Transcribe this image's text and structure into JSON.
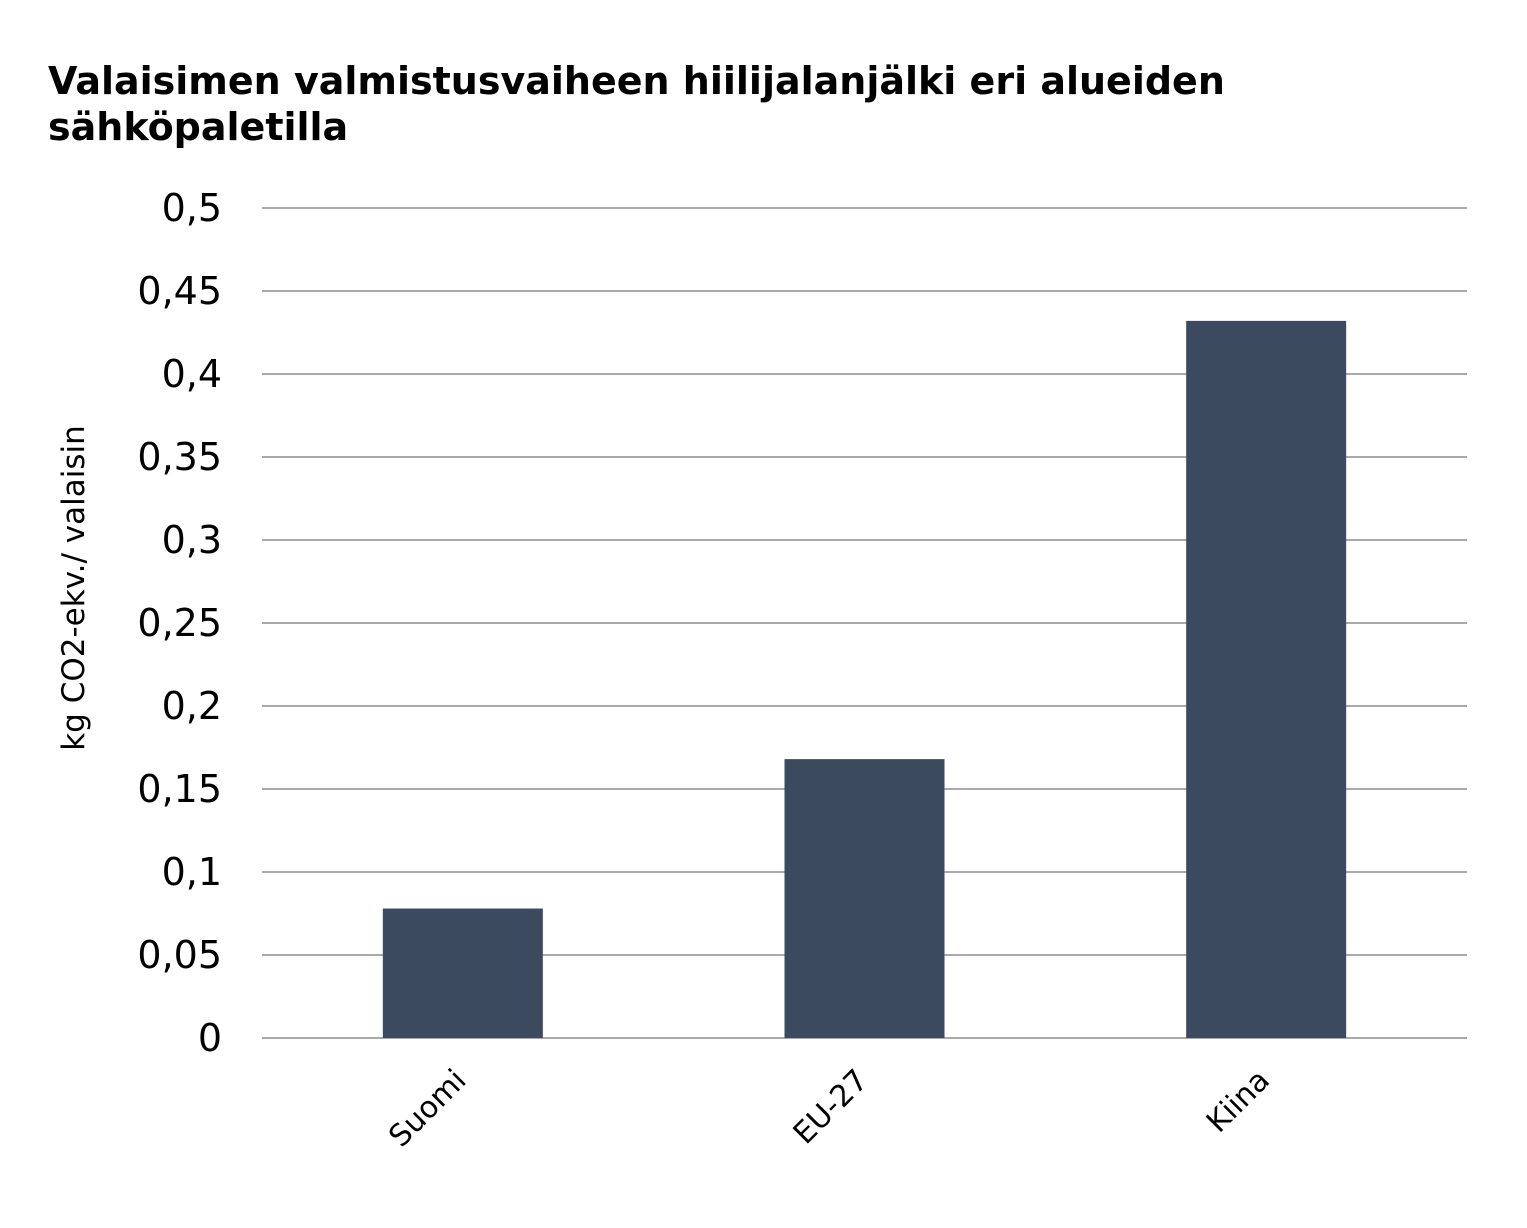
{
  "chart_data": {
    "type": "bar",
    "title": "Valaisimen valmistusvaiheen hiilijalanjälki eri alueiden sähköpaletilla",
    "xlabel": "",
    "ylabel": "kg CO2-ekv./ valaisin",
    "categories": [
      "Suomi",
      "EU-27",
      "Kiina"
    ],
    "values": [
      0.078,
      0.168,
      0.432
    ],
    "ylim": [
      0,
      0.5
    ],
    "y_ticks": [
      {
        "value": 0,
        "label": "0"
      },
      {
        "value": 0.05,
        "label": "0,05"
      },
      {
        "value": 0.1,
        "label": "0,1"
      },
      {
        "value": 0.15,
        "label": "0,15"
      },
      {
        "value": 0.2,
        "label": "0,2"
      },
      {
        "value": 0.25,
        "label": "0,25"
      },
      {
        "value": 0.3,
        "label": "0,3"
      },
      {
        "value": 0.35,
        "label": "0,35"
      },
      {
        "value": 0.4,
        "label": "0,4"
      },
      {
        "value": 0.45,
        "label": "0,45"
      },
      {
        "value": 0.5,
        "label": "0,5"
      }
    ],
    "grid": true,
    "legend": "none",
    "colors": {
      "bar": "#3b4a5f",
      "grid": "#a9a9a9",
      "text": "#000000"
    }
  }
}
